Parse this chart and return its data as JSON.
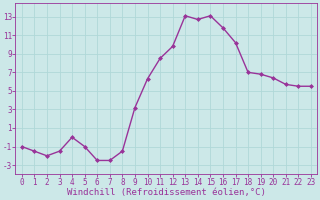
{
  "x": [
    0,
    1,
    2,
    3,
    4,
    5,
    6,
    7,
    8,
    9,
    10,
    11,
    12,
    13,
    14,
    15,
    16,
    17,
    18,
    19,
    20,
    21,
    22,
    23
  ],
  "y": [
    -1,
    -1.5,
    -2,
    -1.5,
    0,
    -1,
    -2.5,
    -2.5,
    -1.5,
    3.2,
    6.3,
    8.5,
    9.8,
    13.1,
    12.7,
    13.1,
    11.8,
    10.2,
    7.0,
    6.8,
    6.4,
    5.7,
    5.5,
    5.5
  ],
  "line_color": "#993399",
  "marker": "D",
  "marker_size": 2.0,
  "xlabel": "Windchill (Refroidissement éolien,°C)",
  "xlabel_fontsize": 6.5,
  "ylabel_ticks": [
    -3,
    -1,
    1,
    3,
    5,
    7,
    9,
    11,
    13
  ],
  "xtick_labels": [
    "0",
    "1",
    "2",
    "3",
    "4",
    "5",
    "6",
    "7",
    "8",
    "9",
    "10",
    "11",
    "12",
    "13",
    "14",
    "15",
    "16",
    "17",
    "18",
    "19",
    "20",
    "21",
    "22",
    "23"
  ],
  "ylim": [
    -4,
    14.5
  ],
  "xlim": [
    -0.5,
    23.5
  ],
  "bg_color": "#cce8e8",
  "grid_color": "#b0d8d8",
  "tick_color": "#993399",
  "tick_fontsize": 5.5,
  "line_width": 1.0
}
